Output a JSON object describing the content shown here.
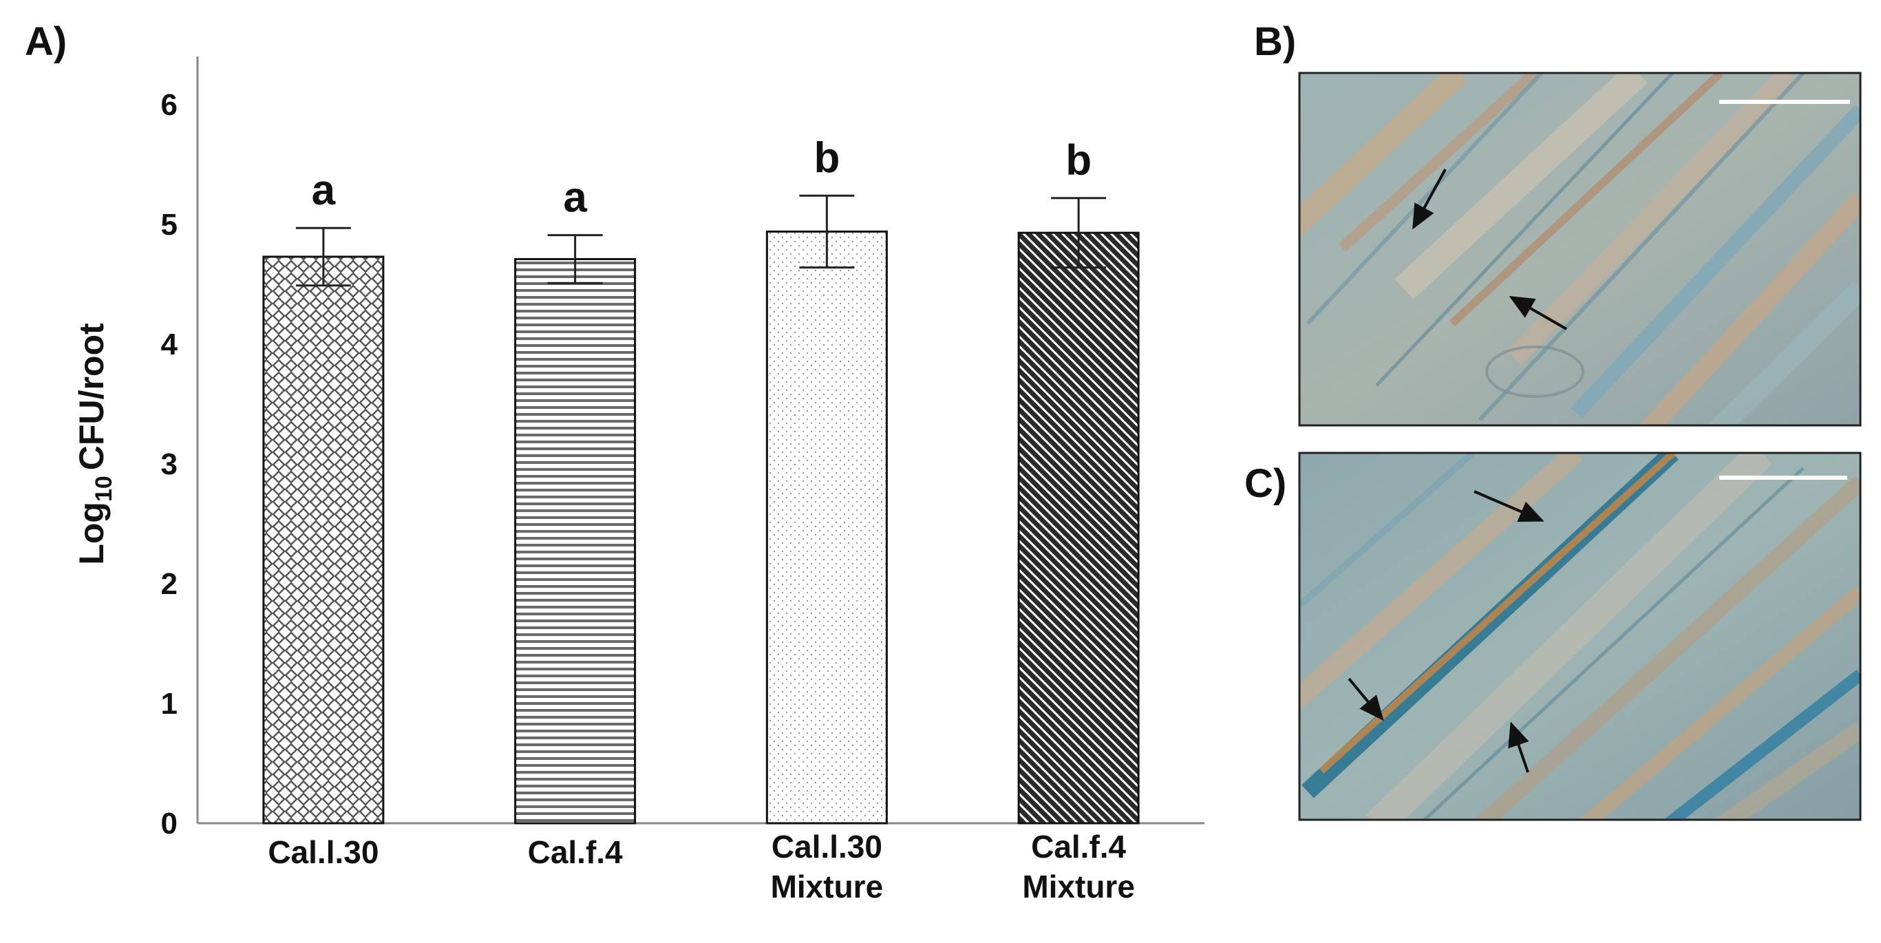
{
  "panels": {
    "a": "A)",
    "b": "B)",
    "c": "C)"
  },
  "chart_data": {
    "type": "bar",
    "categories": [
      [
        "Cal.l.30"
      ],
      [
        "Cal.f.4"
      ],
      [
        "Cal.l.30",
        "Mixture"
      ],
      [
        "Cal.f.4",
        "Mixture"
      ]
    ],
    "values": [
      4.73,
      4.71,
      4.94,
      4.93
    ],
    "errors": [
      0.24,
      0.2,
      0.3,
      0.29
    ],
    "significance": [
      "a",
      "a",
      "b",
      "b"
    ],
    "patterns": [
      "diamond-lattice",
      "horizontal-lines",
      "fine-dots",
      "dense-diagonal"
    ],
    "ylabel": {
      "prefix": "Log",
      "subscript": "10",
      "suffix": "CFU/root"
    },
    "yticks": [
      0,
      1,
      2,
      3,
      4,
      5,
      6
    ],
    "ylim": [
      0,
      6.6
    ],
    "grid": false,
    "legend": "none"
  }
}
